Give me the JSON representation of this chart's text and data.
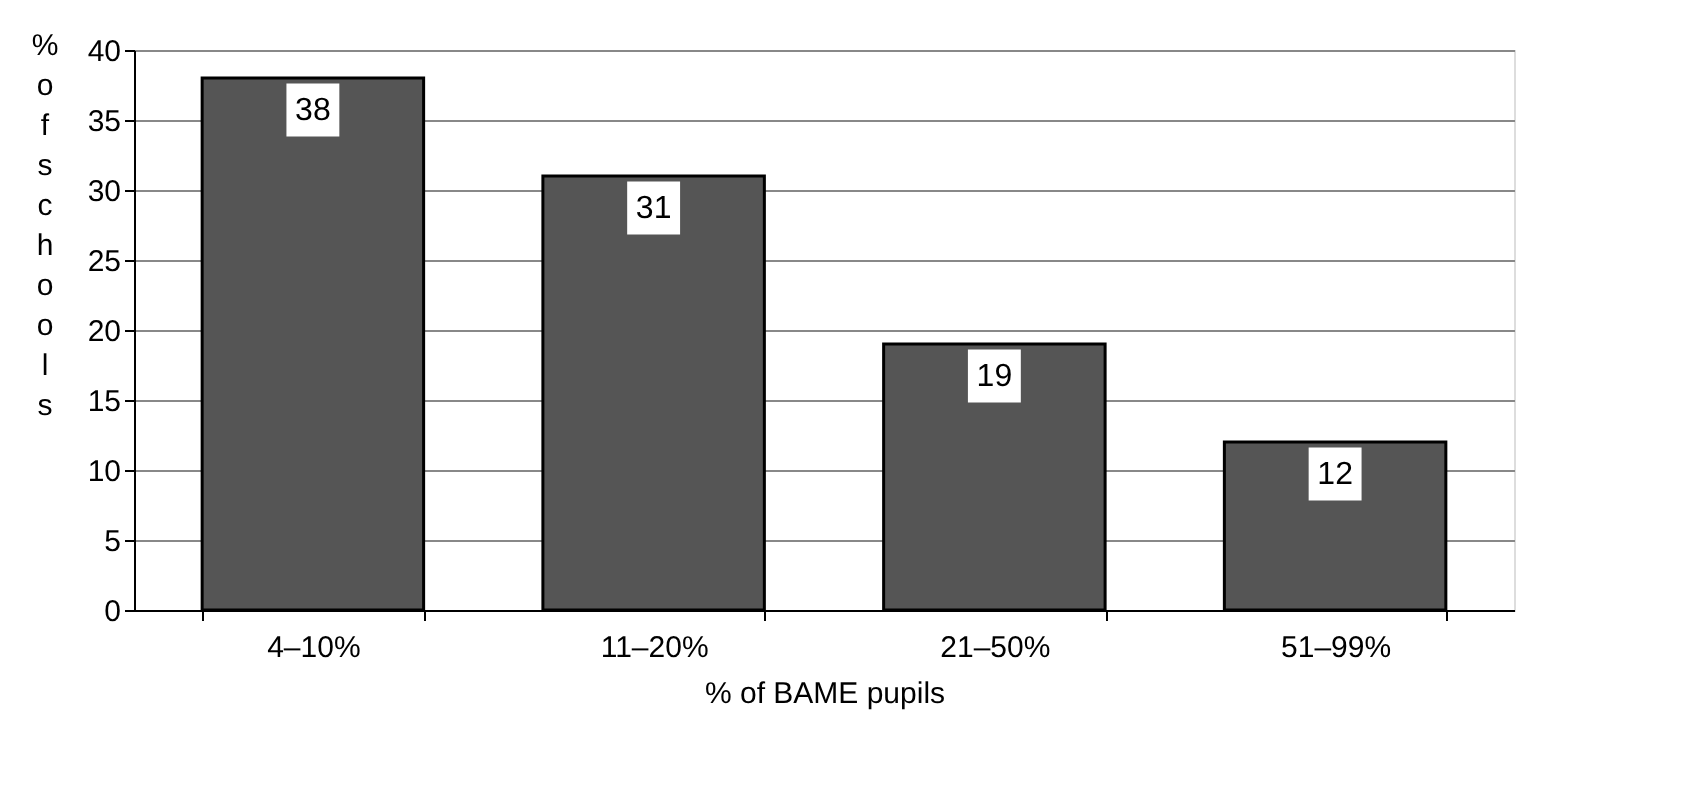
{
  "chart_data": {
    "type": "bar",
    "xlabel": "% of BAME pupils",
    "ylabel": "% of schools",
    "categories": [
      "4–10%",
      "11–20%",
      "21–50%",
      "51–99%"
    ],
    "values": [
      38,
      31,
      19,
      12
    ],
    "color": "#555555",
    "ylim": [
      0,
      40
    ],
    "yticks": [
      0,
      5,
      10,
      15,
      20,
      25,
      30,
      35,
      40
    ],
    "grid": "y",
    "data_labels": true
  }
}
